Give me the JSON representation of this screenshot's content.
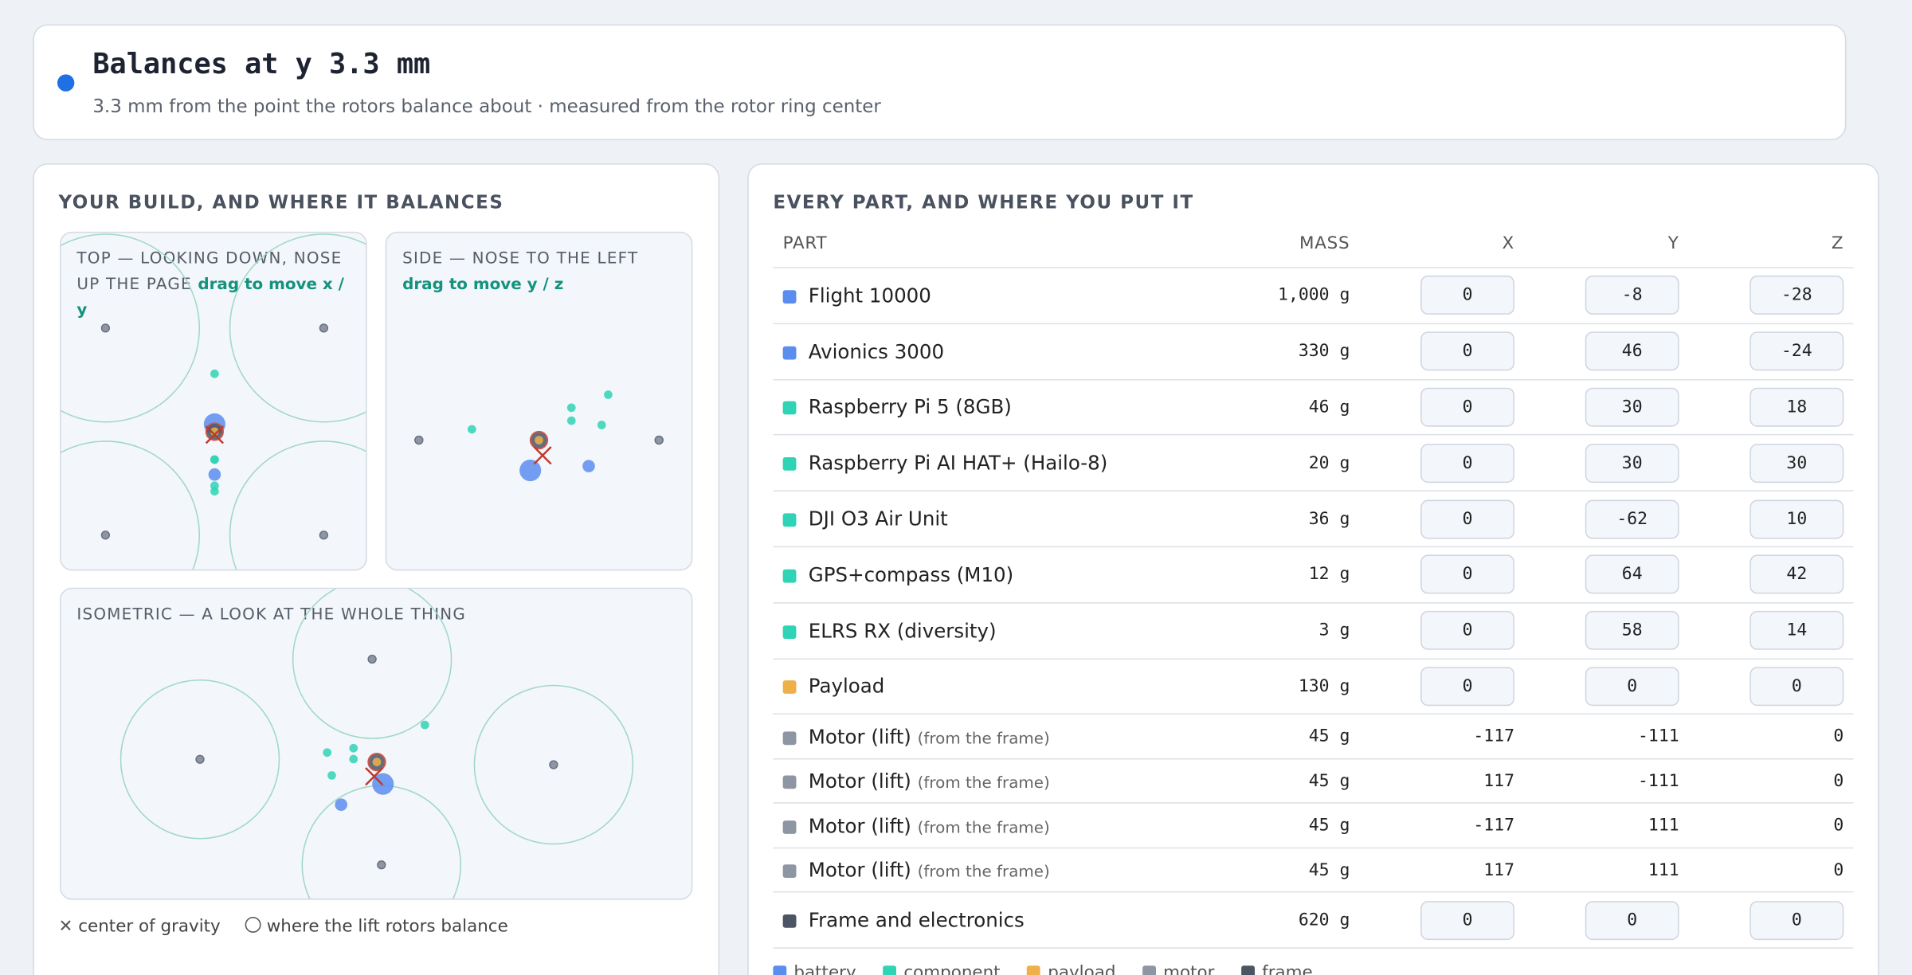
{
  "header": {
    "title": "Balances at y 3.3 mm",
    "subtitle": "3.3 mm from the point the rotors balance about · measured from the rotor ring center"
  },
  "build": {
    "heading": "YOUR BUILD, AND WHERE IT BALANCES",
    "views": {
      "top": {
        "title": "TOP — LOOKING DOWN, NOSE UP THE PAGE",
        "hint": "drag to move x / y"
      },
      "side": {
        "title": "SIDE — NOSE TO THE LEFT",
        "hint": "drag to move y / z"
      },
      "iso": {
        "title": "ISOMETRIC — A LOOK AT THE WHOLE THING"
      }
    },
    "legend": {
      "cg": "center of gravity",
      "rotors": "where the lift rotors balance"
    }
  },
  "parts": {
    "heading": "EVERY PART, AND WHERE YOU PUT IT",
    "columns": [
      "PART",
      "MASS",
      "X",
      "Y",
      "Z"
    ],
    "rows": [
      {
        "name": "Flight 10000",
        "kind": "battery",
        "mass": {
          "value": 1000,
          "label": "1,000 g"
        },
        "x": 0,
        "y": -8,
        "z": -28
      },
      {
        "name": "Avionics 3000",
        "kind": "battery",
        "mass": {
          "value": 330,
          "label": "330 g"
        },
        "x": 0,
        "y": 46,
        "z": -24
      },
      {
        "name": "Raspberry Pi 5 (8GB)",
        "kind": "component",
        "mass": {
          "value": 46,
          "label": "46 g"
        },
        "x": 0,
        "y": 30,
        "z": 18
      },
      {
        "name": "Raspberry Pi AI HAT+ (Hailo-8)",
        "kind": "component",
        "mass": {
          "value": 20,
          "label": "20 g"
        },
        "x": 0,
        "y": 30,
        "z": 30
      },
      {
        "name": "DJI O3 Air Unit",
        "kind": "component",
        "mass": {
          "value": 36,
          "label": "36 g"
        },
        "x": 0,
        "y": -62,
        "z": 10
      },
      {
        "name": "GPS+compass (M10)",
        "kind": "component",
        "mass": {
          "value": 12,
          "label": "12 g"
        },
        "x": 0,
        "y": 64,
        "z": 42
      },
      {
        "name": "ELRS RX (diversity)",
        "kind": "component",
        "mass": {
          "value": 3,
          "label": "3 g"
        },
        "x": 0,
        "y": 58,
        "z": 14
      },
      {
        "name": "Payload",
        "kind": "payload",
        "mass": {
          "value": 130,
          "label": "130 g"
        },
        "x": 0,
        "y": 0,
        "z": 0
      },
      {
        "name": "Motor (lift)",
        "note": "(from the frame)",
        "kind": "motor",
        "mass": {
          "value": 45,
          "label": "45 g"
        },
        "x": -117,
        "y": -111,
        "z": 0
      },
      {
        "name": "Motor (lift)",
        "note": "(from the frame)",
        "kind": "motor",
        "mass": {
          "value": 45,
          "label": "45 g"
        },
        "x": 117,
        "y": -111,
        "z": 0
      },
      {
        "name": "Motor (lift)",
        "note": "(from the frame)",
        "kind": "motor",
        "mass": {
          "value": 45,
          "label": "45 g"
        },
        "x": -117,
        "y": 111,
        "z": 0
      },
      {
        "name": "Motor (lift)",
        "note": "(from the frame)",
        "kind": "motor",
        "mass": {
          "value": 45,
          "label": "45 g"
        },
        "x": 117,
        "y": 111,
        "z": 0
      },
      {
        "name": "Frame and electronics",
        "kind": "frame",
        "mass": {
          "value": 620,
          "label": "620 g"
        },
        "x": 0,
        "y": 0,
        "z": 0
      }
    ],
    "legend": [
      {
        "name": "battery",
        "color": "#5b8def"
      },
      {
        "name": "component",
        "color": "#2fd3b5"
      },
      {
        "name": "payload",
        "color": "#efb04a"
      },
      {
        "name": "motor",
        "color": "#8e95a3"
      },
      {
        "name": "frame",
        "color": "#4b5563"
      }
    ]
  }
}
